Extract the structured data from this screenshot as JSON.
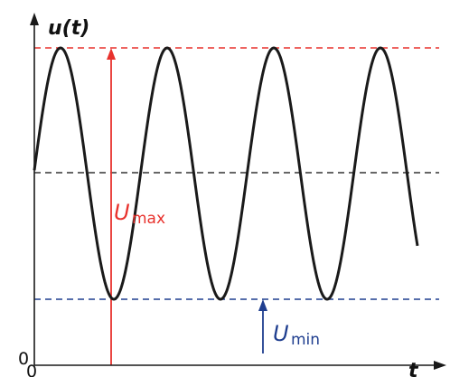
{
  "axes": {
    "y_label": "u(t)",
    "x_label": "t",
    "origin_label": "0",
    "origin_x_label": "0"
  },
  "annotations": {
    "u_max": {
      "symbol": "U",
      "subscript": "max",
      "color": "#e8322d"
    },
    "u_min": {
      "symbol": "U",
      "subscript": "min",
      "color": "#1f3e8f"
    }
  },
  "colors": {
    "curve": "#1a1a1a",
    "axis": "#1a1a1a",
    "max_line": "#e8322d",
    "mid_line": "#333333",
    "min_line": "#1f3e8f"
  },
  "signal": {
    "kind": "sinusoid",
    "visible_max_peaks": 4,
    "visible_min_troughs": 3
  }
}
